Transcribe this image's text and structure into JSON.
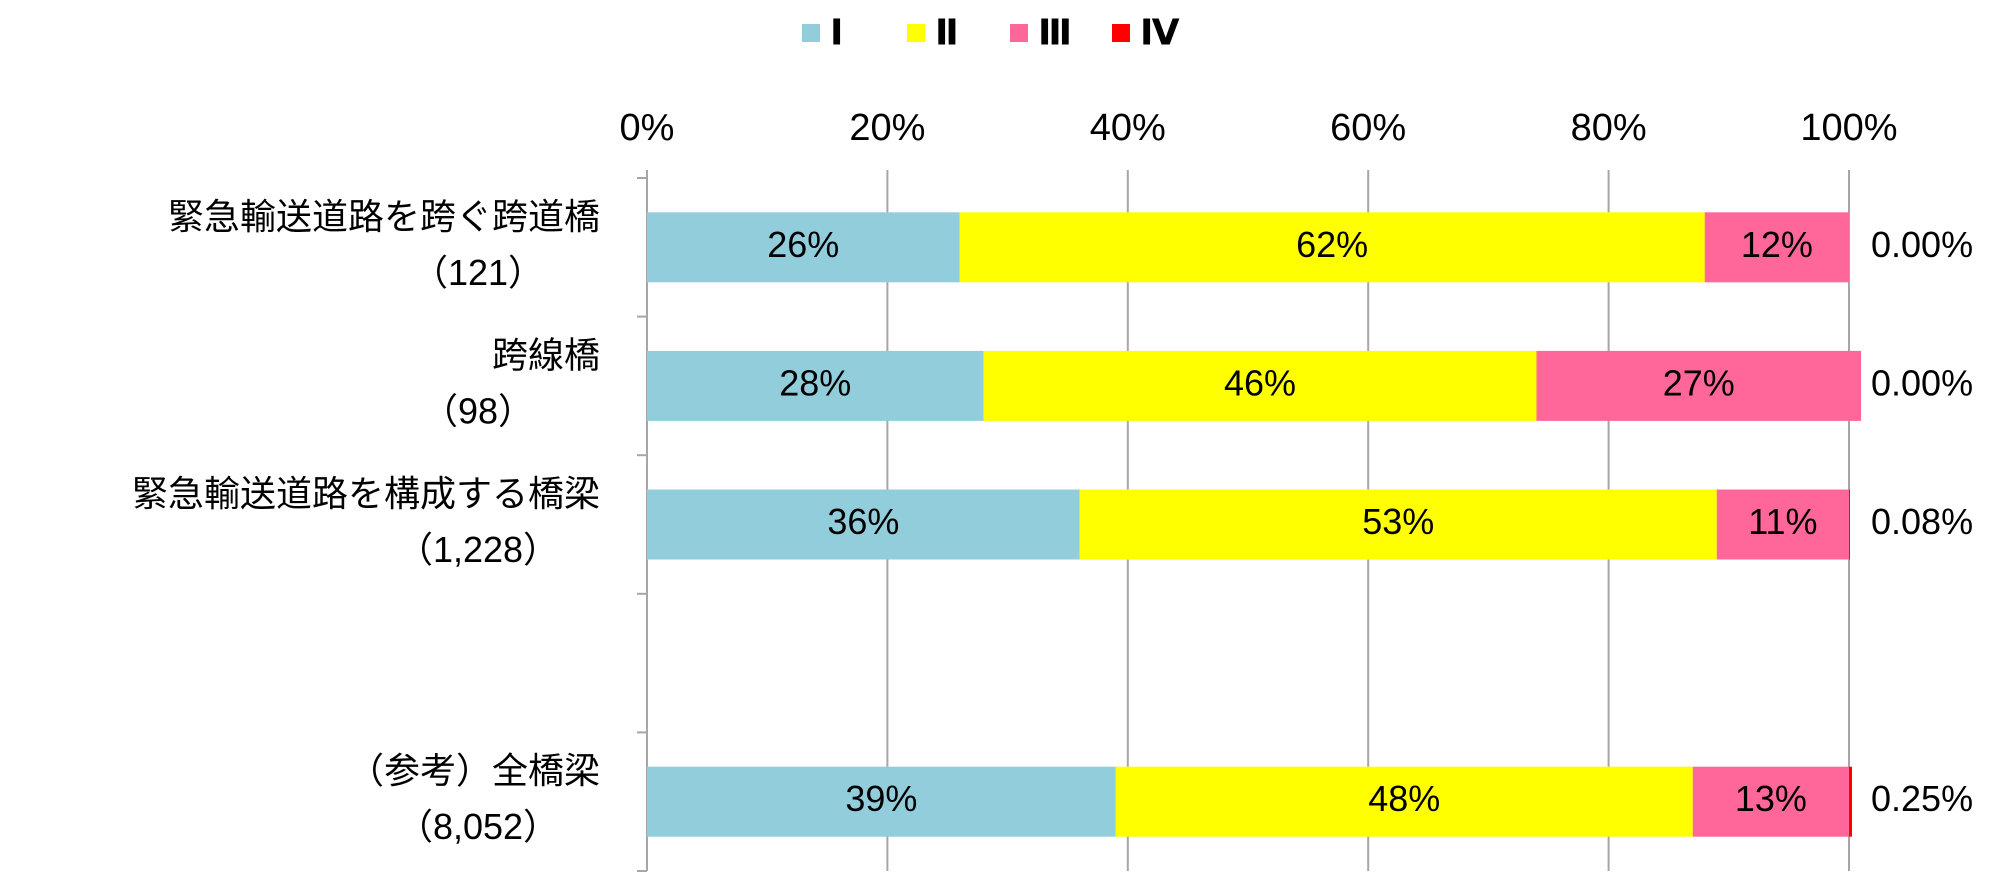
{
  "chart_data": {
    "type": "stacked-bar-horizontal",
    "categories": [
      [
        "緊急輸送道路を跨ぐ跨道橋",
        "（121）"
      ],
      [
        "跨線橋",
        "（98）"
      ],
      [
        "緊急輸送道路を構成する橋梁",
        "（1,228）"
      ],
      null,
      [
        "（参考）全橋梁",
        "（8,052）"
      ]
    ],
    "series": [
      {
        "name": "Ⅰ",
        "color": "#92cddc",
        "values": [
          26,
          28,
          36,
          null,
          39
        ],
        "value_labels": [
          "26%",
          "28%",
          "36%",
          null,
          "39%"
        ]
      },
      {
        "name": "Ⅱ",
        "color": "#ffff00",
        "values": [
          62,
          46,
          53,
          null,
          48
        ],
        "value_labels": [
          "62%",
          "46%",
          "53%",
          null,
          "48%"
        ]
      },
      {
        "name": "Ⅲ",
        "color": "#ff6699",
        "values": [
          12,
          27,
          11,
          null,
          13
        ],
        "value_labels": [
          "12%",
          "27%",
          "11%",
          null,
          "13%"
        ]
      },
      {
        "name": "Ⅳ",
        "color": "#ff0000",
        "values": [
          0,
          0,
          0.08,
          null,
          0.25
        ],
        "value_labels": [
          "0.00%",
          "0.00%",
          "0.08%",
          null,
          "0.25%"
        ]
      }
    ],
    "xlim": [
      0,
      100
    ],
    "xticks": [
      {
        "value": 0,
        "label": "0%"
      },
      {
        "value": 20,
        "label": "20%"
      },
      {
        "value": 40,
        "label": "40%"
      },
      {
        "value": 60,
        "label": "60%"
      },
      {
        "value": 80,
        "label": "80%"
      },
      {
        "value": 100,
        "label": "100%"
      }
    ],
    "grid": true,
    "legend": "top"
  }
}
